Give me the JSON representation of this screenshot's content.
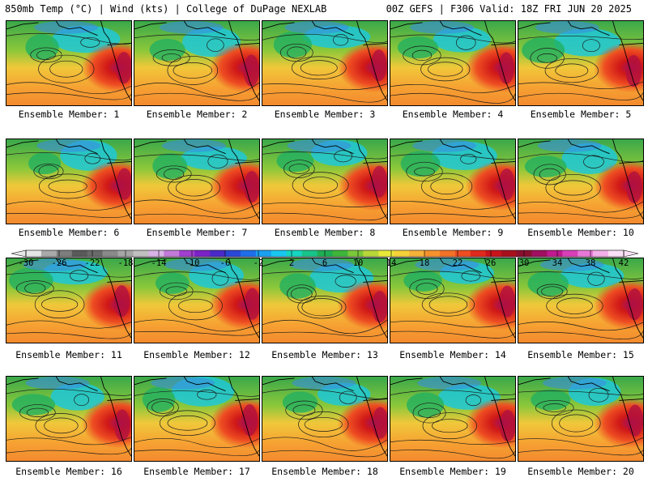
{
  "header": {
    "left": "850mb Temp (°C) | Wind (kts) | College of DuPage NEXLAB",
    "right": "00Z GEFS | F306 Valid: 18Z FRI JUN 20 2025"
  },
  "members": [
    {
      "label": "Ensemble Member: 1"
    },
    {
      "label": "Ensemble Member: 2"
    },
    {
      "label": "Ensemble Member: 3"
    },
    {
      "label": "Ensemble Member: 4"
    },
    {
      "label": "Ensemble Member: 5"
    },
    {
      "label": "Ensemble Member: 6"
    },
    {
      "label": "Ensemble Member: 7"
    },
    {
      "label": "Ensemble Member: 8"
    },
    {
      "label": "Ensemble Member: 9"
    },
    {
      "label": "Ensemble Member: 10"
    },
    {
      "label": "Ensemble Member: 11"
    },
    {
      "label": "Ensemble Member: 12"
    },
    {
      "label": "Ensemble Member: 13"
    },
    {
      "label": "Ensemble Member: 14"
    },
    {
      "label": "Ensemble Member: 15"
    },
    {
      "label": "Ensemble Member: 16"
    },
    {
      "label": "Ensemble Member: 17"
    },
    {
      "label": "Ensemble Member: 18"
    },
    {
      "label": "Ensemble Member: 19"
    },
    {
      "label": "Ensemble Member: 20"
    }
  ],
  "colorbar": {
    "ticks": [
      "-30",
      "-26",
      "-22",
      "-18",
      "-14",
      "-10",
      "-6",
      "-2",
      "2",
      "6",
      "10",
      "14",
      "18",
      "22",
      "26",
      "30",
      "34",
      "38",
      "42"
    ],
    "colors": [
      "#e6e6e6",
      "#a9a9a9",
      "#7e7e7e",
      "#5a5a5a",
      "#6a6a6a",
      "#8a8a8a",
      "#a6a6a6",
      "#c0c0c0",
      "#d8b4e6",
      "#c27bd8",
      "#a13fd0",
      "#7a22c6",
      "#4b28c8",
      "#2a47d6",
      "#1e6fe8",
      "#1b9ff0",
      "#19c7f0",
      "#17d6c0",
      "#18c48a",
      "#1fae55",
      "#3fb63a",
      "#7bc83a",
      "#b8d83a",
      "#e8e83a",
      "#f6d23a",
      "#f8b23a",
      "#f6922e",
      "#f27228",
      "#ee4e22",
      "#e02a1e",
      "#c8141c",
      "#a8101e",
      "#8a1030",
      "#a01060",
      "#c01a90",
      "#d840b8",
      "#e878d8",
      "#f2b0ea",
      "#fae0f6"
    ]
  }
}
